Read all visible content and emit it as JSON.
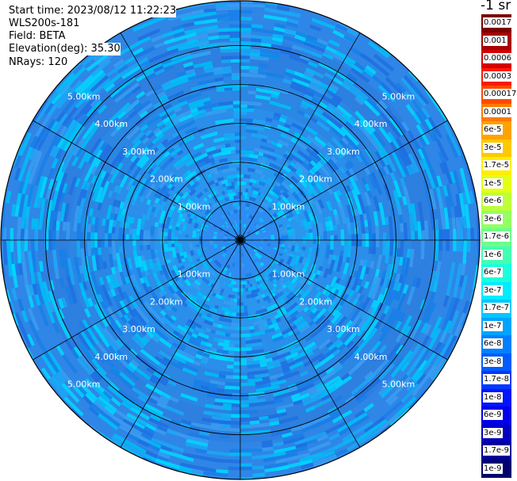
{
  "header": {
    "start_time": "Start time: 2023/08/12 11:22:23",
    "instrument": "WLS200s-181",
    "field": "Field: BETA",
    "elevation": "Elevation(deg): 35.30",
    "nrays": "NRays: 120"
  },
  "colorbar": {
    "unit_label": "-1 sr",
    "levels": [
      {
        "label": "0.0017",
        "color": "#7a0000"
      },
      {
        "label": "0.001",
        "color": "#a80000"
      },
      {
        "label": "0.0006",
        "color": "#d40000"
      },
      {
        "label": "0.0003",
        "color": "#ff1a00"
      },
      {
        "label": "0.00017",
        "color": "#ff4a00"
      },
      {
        "label": "0.0001",
        "color": "#ff7a00"
      },
      {
        "label": "6e-5",
        "color": "#ffa200"
      },
      {
        "label": "3e-5",
        "color": "#ffc800"
      },
      {
        "label": "1.7e-5",
        "color": "#ffee00"
      },
      {
        "label": "1e-5",
        "color": "#e4ff12"
      },
      {
        "label": "6e-6",
        "color": "#bcff3a"
      },
      {
        "label": "3e-6",
        "color": "#94ff62"
      },
      {
        "label": "1.7e-6",
        "color": "#6cff8a"
      },
      {
        "label": "1e-6",
        "color": "#44ffb2"
      },
      {
        "label": "6e-7",
        "color": "#1cffda"
      },
      {
        "label": "3e-7",
        "color": "#00ecff"
      },
      {
        "label": "1.7e-7",
        "color": "#00c8ff"
      },
      {
        "label": "1e-7",
        "color": "#00a4ff"
      },
      {
        "label": "6e-8",
        "color": "#0080ff"
      },
      {
        "label": "3e-8",
        "color": "#005cff"
      },
      {
        "label": "1.7e-8",
        "color": "#0038ff"
      },
      {
        "label": "1e-8",
        "color": "#0014ff"
      },
      {
        "label": "6e-9",
        "color": "#0000e8"
      },
      {
        "label": "3e-9",
        "color": "#0000bf"
      },
      {
        "label": "1.7e-9",
        "color": "#000096"
      },
      {
        "label": "1e-9",
        "color": "#00006e"
      }
    ]
  },
  "chart_data": {
    "type": "heatmap",
    "projection": "polar (PPI scan)",
    "field": "BETA",
    "unit": "-1 sr",
    "elevation_deg": 35.3,
    "n_rays": 120,
    "range_rings_km": [
      1.0,
      2.0,
      3.0,
      4.0,
      5.0
    ],
    "range_ring_labels": [
      "1.00km",
      "2.00km",
      "3.00km",
      "4.00km",
      "5.00km"
    ],
    "max_range_km": 6.15,
    "spoke_angles_deg": [
      0,
      30,
      60,
      90,
      120,
      150,
      180,
      210,
      240,
      270,
      300,
      330
    ],
    "value_description": "near-uniform backscatter about 3e-8 to 1e-7 across the scan, slightly lower near the centre",
    "zones": [
      {
        "range_km": [
          0.0,
          1.0
        ],
        "color": "#2e8cf2"
      },
      {
        "range_km": [
          1.0,
          2.2
        ],
        "color": "#2a96ee"
      },
      {
        "range_km": [
          2.2,
          3.4
        ],
        "color": "#2a8eea"
      },
      {
        "range_km": [
          3.4,
          4.4
        ],
        "color": "#2b86e4"
      },
      {
        "range_km": [
          4.4,
          5.2
        ],
        "color": "#2d7fe0"
      },
      {
        "range_km": [
          5.2,
          6.15
        ],
        "color": "#2f86e6"
      }
    ],
    "speckle_colors": [
      "#1aa8f5",
      "#00bff7",
      "#00d8ff",
      "#1f6fe0",
      "#3b9cf0",
      "#187fe8"
    ]
  }
}
